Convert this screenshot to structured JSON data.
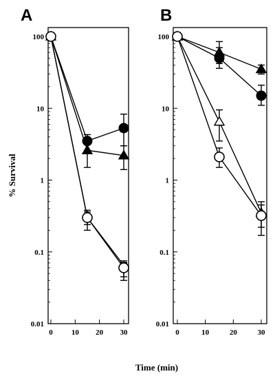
{
  "figure": {
    "xlabel": "Time (min)",
    "ylabel": "% Survival"
  },
  "chart_data": [
    {
      "type": "line",
      "panel": "A",
      "yscale": "log",
      "ylim": [
        0.01,
        100
      ],
      "xlim": [
        0,
        30
      ],
      "x_ticks": [
        0,
        10,
        20,
        30
      ],
      "y_ticks": [
        "0.01",
        "0.1",
        "1",
        "10",
        "100"
      ],
      "xlabel": "Time (min)",
      "ylabel": "% Survival",
      "series": [
        {
          "marker": "filled-circle",
          "x": [
            0,
            15,
            30
          ],
          "y": [
            100,
            3.5,
            5.3
          ],
          "err_low": [
            null,
            2.6,
            3.0
          ],
          "err_high": [
            null,
            4.3,
            8.3
          ]
        },
        {
          "marker": "filled-triangle",
          "x": [
            0,
            15,
            30
          ],
          "y": [
            100,
            2.6,
            2.2
          ],
          "err_low": [
            null,
            1.5,
            1.4
          ],
          "err_high": [
            null,
            3.4,
            3.0
          ]
        },
        {
          "marker": "filled-square",
          "x": [
            0,
            15,
            30
          ],
          "y": [
            100,
            0.3,
            0.065
          ],
          "err_low": [
            null,
            0.2,
            0.045
          ],
          "err_high": [
            null,
            0.38,
            0.075
          ]
        },
        {
          "marker": "open-circle",
          "x": [
            0,
            15,
            30
          ],
          "y": [
            100,
            0.3,
            0.06
          ],
          "err_low": [
            null,
            0.24,
            0.04
          ],
          "err_high": [
            null,
            0.36,
            0.07
          ]
        }
      ]
    },
    {
      "type": "line",
      "panel": "B",
      "yscale": "log",
      "ylim": [
        0.01,
        100
      ],
      "xlim": [
        0,
        30
      ],
      "x_ticks": [
        0,
        10,
        20,
        30
      ],
      "y_ticks": [
        "0.01",
        "0.1",
        "1",
        "10",
        "100"
      ],
      "xlabel": "Time (min)",
      "ylabel": "% Survival",
      "series": [
        {
          "marker": "filled-triangle",
          "x": [
            0,
            15,
            30
          ],
          "y": [
            100,
            60,
            35
          ],
          "err_low": [
            null,
            42,
            30
          ],
          "err_high": [
            null,
            85,
            40
          ]
        },
        {
          "marker": "filled-circle",
          "x": [
            0,
            15,
            30
          ],
          "y": [
            100,
            50,
            15
          ],
          "err_low": [
            null,
            36,
            11
          ],
          "err_high": [
            null,
            70,
            21
          ]
        },
        {
          "marker": "open-triangle",
          "x": [
            0,
            15,
            30
          ],
          "y": [
            100,
            6.5,
            0.35
          ],
          "err_low": [
            null,
            3.5,
            0.22
          ],
          "err_high": [
            null,
            9.5,
            0.5
          ]
        },
        {
          "marker": "open-circle",
          "x": [
            0,
            15,
            30
          ],
          "y": [
            100,
            2.1,
            0.32
          ],
          "err_low": [
            null,
            1.5,
            0.17
          ],
          "err_high": [
            null,
            2.8,
            0.45
          ]
        }
      ]
    }
  ]
}
